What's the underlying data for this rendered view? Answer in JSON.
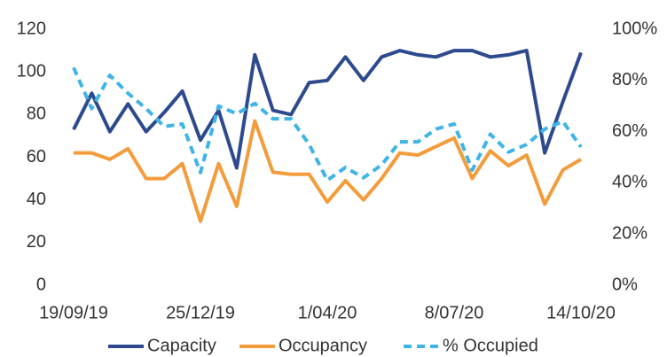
{
  "chart_data": {
    "type": "line",
    "categories": [
      "19/09/19",
      null,
      null,
      null,
      null,
      null,
      null,
      "25/12/19",
      null,
      null,
      null,
      null,
      null,
      null,
      "1/04/20",
      null,
      null,
      null,
      null,
      null,
      null,
      "8/07/20",
      null,
      null,
      null,
      null,
      null,
      null,
      "14/10/20"
    ],
    "series": [
      {
        "name": "Capacity",
        "color": "#2e4a8e",
        "dashed": false,
        "axis": "y",
        "values": [
          73,
          90,
          72,
          85,
          72,
          81,
          91,
          68,
          82,
          55,
          108,
          82,
          80,
          95,
          96,
          107,
          96,
          107,
          110,
          108,
          107,
          110,
          110,
          107,
          108,
          110,
          62,
          86,
          109
        ]
      },
      {
        "name": "Occupancy",
        "color": "#f39c3b",
        "dashed": false,
        "axis": "y",
        "values": [
          62,
          62,
          59,
          64,
          50,
          50,
          57,
          30,
          57,
          37,
          77,
          53,
          52,
          52,
          39,
          49,
          40,
          50,
          62,
          61,
          65,
          69,
          50,
          63,
          56,
          61,
          38,
          54,
          59
        ]
      },
      {
        "name": "% Occupied",
        "color": "#3fb4e6",
        "dashed": true,
        "axis": "y2",
        "values": [
          85,
          69,
          82,
          75,
          69,
          62,
          63,
          44,
          70,
          67,
          71,
          65,
          65,
          55,
          41,
          46,
          42,
          47,
          56,
          56,
          61,
          63,
          45,
          59,
          52,
          55,
          61,
          64,
          54
        ]
      }
    ],
    "ylim": [
      0,
      120
    ],
    "yticks": [
      0,
      20,
      40,
      60,
      80,
      100,
      120
    ],
    "y2lim": [
      0,
      100
    ],
    "y2ticks": [
      {
        "value": 0,
        "label": "0%"
      },
      {
        "value": 20,
        "label": "20%"
      },
      {
        "value": 40,
        "label": "40%"
      },
      {
        "value": 60,
        "label": "60%"
      },
      {
        "value": 80,
        "label": "80%"
      },
      {
        "value": 100,
        "label": "100%"
      }
    ],
    "grid": false,
    "legend": "bottom"
  }
}
